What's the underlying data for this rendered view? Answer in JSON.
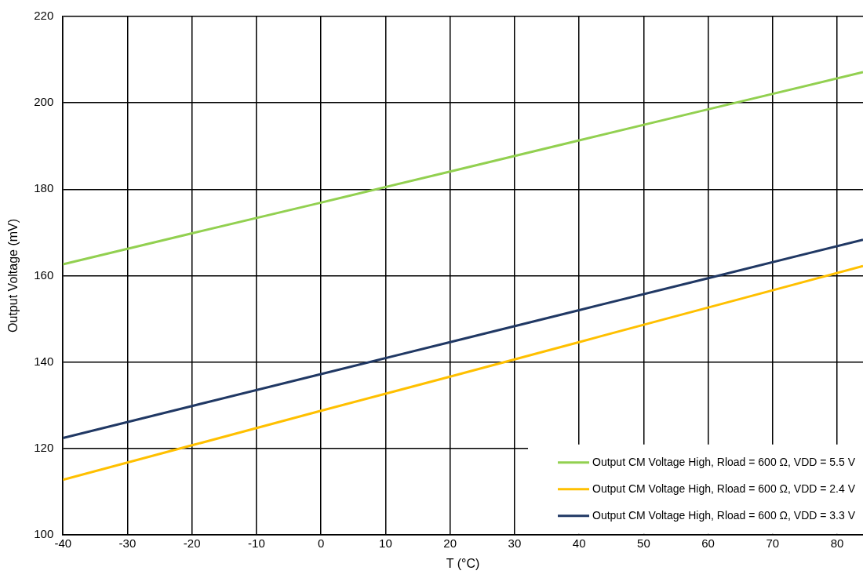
{
  "chart_data": {
    "type": "line",
    "xlabel": "T (°C)",
    "ylabel": "Output Voltage (mV)",
    "x": [
      -40,
      -20,
      0,
      20,
      40,
      60,
      84
    ],
    "series": [
      {
        "name": "Output CM Voltage High, Rload = 600 Ω, VDD = 5.5 V",
        "color": "#92d050",
        "values": [
          162.6,
          169.8,
          176.9,
          184.1,
          191.3,
          198.5,
          207.1
        ]
      },
      {
        "name": "Output CM Voltage High, Rload = 600 Ω, VDD = 2.4 V",
        "color": "#ffc000",
        "values": [
          112.7,
          120.7,
          128.7,
          136.6,
          144.6,
          152.6,
          162.2
        ]
      },
      {
        "name": "Output CM Voltage High, Rload = 600 Ω, VDD = 3.3 V",
        "color": "#203864",
        "values": [
          122.4,
          129.8,
          137.2,
          144.6,
          152.0,
          159.4,
          168.3
        ]
      }
    ],
    "xlim": [
      -40,
      84
    ],
    "xticks": [
      -40,
      -30,
      -20,
      -10,
      0,
      10,
      20,
      30,
      40,
      50,
      60,
      70,
      80
    ],
    "ylim": [
      100,
      220
    ],
    "yticks": [
      100,
      120,
      140,
      160,
      180,
      200,
      220
    ],
    "grid": true,
    "legend": "bottom right",
    "marker": "none",
    "line_style": "solid"
  }
}
